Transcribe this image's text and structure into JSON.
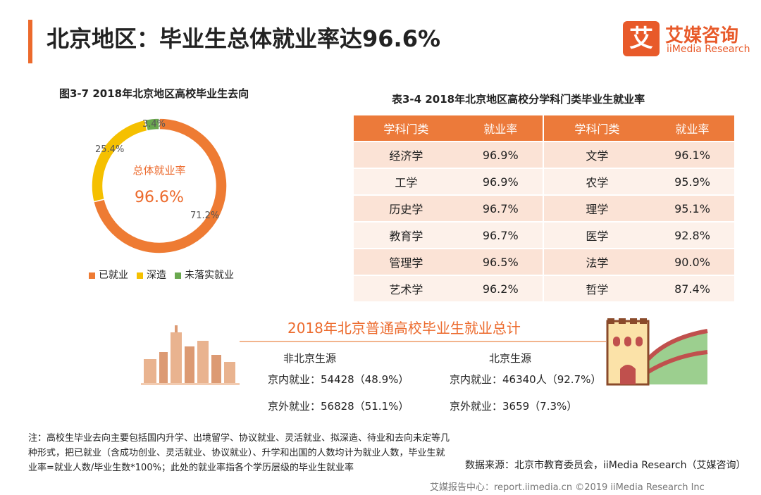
{
  "page_title": "北京地区：毕业生总体就业率达96.6%",
  "brand": {
    "logo_mark": "艾",
    "name_cn": "艾媒咨询",
    "name_en": "iiMedia Research",
    "accent": "#ec6a2c"
  },
  "chart_data": [
    {
      "type": "pie",
      "title": "图3-7 2018年北京地区高校毕业生去向",
      "center_label": "总体就业率",
      "center_value": "96.6%",
      "slices": [
        {
          "name": "已就业",
          "value": 71.2,
          "label": "71.2%",
          "color": "#ee7b33"
        },
        {
          "name": "深造",
          "value": 25.4,
          "label": "25.4%",
          "color": "#f5c000"
        },
        {
          "name": "未落实就业",
          "value": 3.4,
          "label": "3.4%",
          "color": "#6aa84f"
        }
      ],
      "legend_position": "bottom"
    },
    {
      "type": "table",
      "title": "表3-4 2018年北京地区高校分学科门类毕业生就业率",
      "columns": [
        "学科门类",
        "就业率",
        "学科门类",
        "就业率"
      ],
      "rows": [
        [
          "经济学",
          "96.9%",
          "文学",
          "96.1%"
        ],
        [
          "工学",
          "96.9%",
          "农学",
          "95.9%"
        ],
        [
          "历史学",
          "96.7%",
          "理学",
          "95.1%"
        ],
        [
          "教育学",
          "96.7%",
          "医学",
          "92.8%"
        ],
        [
          "管理学",
          "96.5%",
          "法学",
          "90.0%"
        ],
        [
          "艺术学",
          "96.2%",
          "哲学",
          "87.4%"
        ]
      ]
    }
  ],
  "summary": {
    "title": "2018年北京普通高校毕业生就业总计",
    "non_beijing": {
      "title": "非北京生源",
      "in_city": "京内就业：54428（48.9%）",
      "out_city": "京外就业：56828（51.1%）"
    },
    "beijing": {
      "title": "北京生源",
      "in_city": "京内就业：46340人（92.7%）",
      "out_city": "京外就业：3659（7.3%）"
    }
  },
  "note": "注：高校生毕业去向主要包括国内升学、出境留学、协议就业、灵活就业、拟深造、待业和去向未定等几种形式，把已就业（含成功创业、灵活就业、协议就业）、升学和出国的人数均计为就业人数，毕业生就业率=就业人数/毕业生数*100%；此处的就业率指各个学历层级的毕业生就业率",
  "source": "数据来源：北京市教育委员会，iiMedia Research（艾媒咨询）",
  "footer": "艾媒报告中心：report.iimedia.cn   ©2019  iiMedia Research  Inc"
}
